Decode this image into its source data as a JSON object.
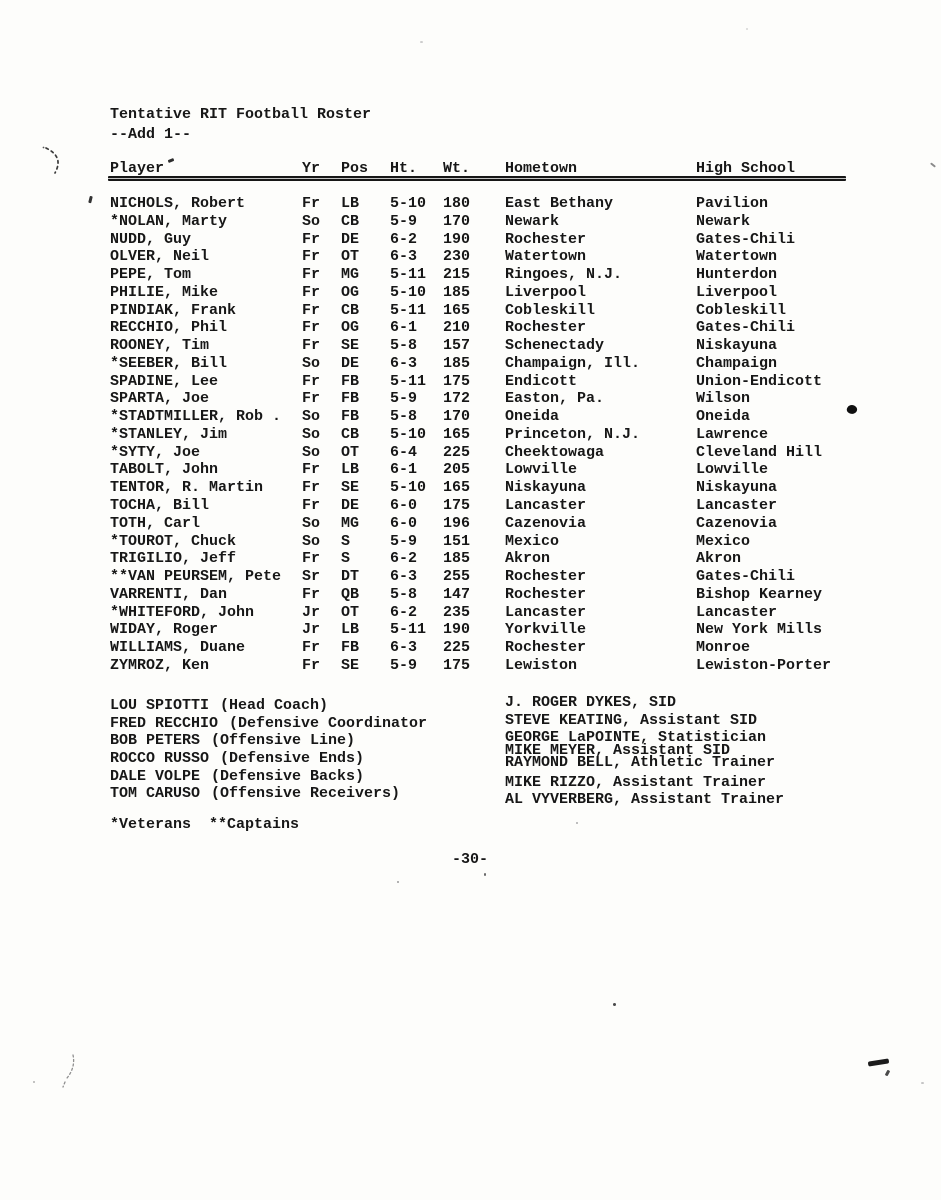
{
  "theme": {
    "paper": "#fdfdfb",
    "ink": "#171717"
  },
  "doc": {
    "title": "Tentative RIT Football Roster",
    "subtitle": "--Add 1--",
    "legend": "*Veterans  **Captains",
    "page_mark": "-30-"
  },
  "roster": {
    "columns": [
      "Player",
      "Yr",
      "Pos",
      "Ht.",
      "Wt.",
      "Hometown",
      "High School"
    ],
    "players": [
      {
        "name": "NICHOLS, Robert",
        "yr": "Fr",
        "pos": "LB",
        "ht": "5-10",
        "wt": "180",
        "hometown": "East Bethany",
        "high_school": "Pavilion"
      },
      {
        "name": "*NOLAN, Marty",
        "yr": "So",
        "pos": "CB",
        "ht": "5-9",
        "wt": "170",
        "hometown": "Newark",
        "high_school": "Newark"
      },
      {
        "name": "NUDD, Guy",
        "yr": "Fr",
        "pos": "DE",
        "ht": "6-2",
        "wt": "190",
        "hometown": "Rochester",
        "high_school": "Gates-Chili"
      },
      {
        "name": "OLVER, Neil",
        "yr": "Fr",
        "pos": "OT",
        "ht": "6-3",
        "wt": "230",
        "hometown": "Watertown",
        "high_school": "Watertown"
      },
      {
        "name": "PEPE, Tom",
        "yr": "Fr",
        "pos": "MG",
        "ht": "5-11",
        "wt": "215",
        "hometown": "Ringoes, N.J.",
        "high_school": "Hunterdon"
      },
      {
        "name": "PHILIE, Mike",
        "yr": "Fr",
        "pos": "OG",
        "ht": "5-10",
        "wt": "185",
        "hometown": "Liverpool",
        "high_school": "Liverpool"
      },
      {
        "name": "PINDIAK, Frank",
        "yr": "Fr",
        "pos": "CB",
        "ht": "5-11",
        "wt": "165",
        "hometown": "Cobleskill",
        "high_school": "Cobleskill"
      },
      {
        "name": "RECCHIO, Phil",
        "yr": "Fr",
        "pos": "OG",
        "ht": "6-1",
        "wt": "210",
        "hometown": "Rochester",
        "high_school": "Gates-Chili"
      },
      {
        "name": "ROONEY, Tim",
        "yr": "Fr",
        "pos": "SE",
        "ht": "5-8",
        "wt": "157",
        "hometown": "Schenectady",
        "high_school": "Niskayuna"
      },
      {
        "name": "*SEEBER, Bill",
        "yr": "So",
        "pos": "DE",
        "ht": "6-3",
        "wt": "185",
        "hometown": "Champaign, Ill.",
        "high_school": "Champaign"
      },
      {
        "name": "SPADINE, Lee",
        "yr": "Fr",
        "pos": "FB",
        "ht": "5-11",
        "wt": "175",
        "hometown": "Endicott",
        "high_school": "Union-Endicott"
      },
      {
        "name": "SPARTA, Joe",
        "yr": "Fr",
        "pos": "FB",
        "ht": "5-9",
        "wt": "172",
        "hometown": "Easton, Pa.",
        "high_school": "Wilson"
      },
      {
        "name": "*STADTMILLER, Rob .",
        "yr": "So",
        "pos": "FB",
        "ht": "5-8",
        "wt": "170",
        "hometown": "Oneida",
        "high_school": "Oneida"
      },
      {
        "name": "*STANLEY, Jim",
        "yr": "So",
        "pos": "CB",
        "ht": "5-10",
        "wt": "165",
        "hometown": "Princeton, N.J.",
        "high_school": "Lawrence"
      },
      {
        "name": "*SYTY, Joe",
        "yr": "So",
        "pos": "OT",
        "ht": "6-4",
        "wt": "225",
        "hometown": "Cheektowaga",
        "high_school": "Cleveland Hill"
      },
      {
        "name": "TABOLT, John",
        "yr": "Fr",
        "pos": "LB",
        "ht": "6-1",
        "wt": "205",
        "hometown": "Lowville",
        "high_school": "Lowville"
      },
      {
        "name": "TENTOR, R. Martin",
        "yr": "Fr",
        "pos": "SE",
        "ht": "5-10",
        "wt": "165",
        "hometown": "Niskayuna",
        "high_school": "Niskayuna"
      },
      {
        "name": "TOCHA, Bill",
        "yr": "Fr",
        "pos": "DE",
        "ht": "6-0",
        "wt": "175",
        "hometown": "Lancaster",
        "high_school": "Lancaster"
      },
      {
        "name": "TOTH, Carl",
        "yr": "So",
        "pos": "MG",
        "ht": "6-0",
        "wt": "196",
        "hometown": "Cazenovia",
        "high_school": "Cazenovia"
      },
      {
        "name": "*TOUROT, Chuck",
        "yr": "So",
        "pos": "S",
        "ht": "5-9",
        "wt": "151",
        "hometown": "Mexico",
        "high_school": "Mexico"
      },
      {
        "name": "TRIGILIO, Jeff",
        "yr": "Fr",
        "pos": "S",
        "ht": "6-2",
        "wt": "185",
        "hometown": "Akron",
        "high_school": "Akron"
      },
      {
        "name": "**VAN PEURSEM, Pete",
        "yr": "Sr",
        "pos": "DT",
        "ht": "6-3",
        "wt": "255",
        "hometown": "Rochester",
        "high_school": "Gates-Chili"
      },
      {
        "name": "VARRENTI, Dan",
        "yr": "Fr",
        "pos": "QB",
        "ht": "5-8",
        "wt": "147",
        "hometown": "Rochester",
        "high_school": "Bishop Kearney"
      },
      {
        "name": "*WHITEFORD, John",
        "yr": "Jr",
        "pos": "OT",
        "ht": "6-2",
        "wt": "235",
        "hometown": "Lancaster",
        "high_school": "Lancaster"
      },
      {
        "name": "WIDAY, Roger",
        "yr": "Jr",
        "pos": "LB",
        "ht": "5-11",
        "wt": "190",
        "hometown": "Yorkville",
        "high_school": "New York Mills"
      },
      {
        "name": "WILLIAMS, Duane",
        "yr": "Fr",
        "pos": "FB",
        "ht": "6-3",
        "wt": "225",
        "hometown": "Rochester",
        "high_school": "Monroe"
      },
      {
        "name": "ZYMROZ, Ken",
        "yr": "Fr",
        "pos": "SE",
        "ht": "5-9",
        "wt": "175",
        "hometown": "Lewiston",
        "high_school": "Lewiston-Porter"
      }
    ]
  },
  "coaches": [
    {
      "name": "LOU SPIOTTI",
      "role": "(Head Coach)"
    },
    {
      "name": "FRED RECCHIO",
      "role": "(Defensive Coordinator"
    },
    {
      "name": "BOB PETERS",
      "role": "(Offensive Line)"
    },
    {
      "name": "ROCCO RUSSO",
      "role": "(Defensive Ends)"
    },
    {
      "name": "DALE VOLPE",
      "role": "(Defensive Backs)"
    },
    {
      "name": "TOM CARUSO",
      "role": "(Offensive Receivers)"
    }
  ],
  "staff": [
    {
      "text": "J. ROGER DYKES, SID"
    },
    {
      "text": "STEVE KEATING, Assistant SID"
    },
    {
      "text": "GEORGE LaPOINTE, Statistician"
    },
    {
      "text": "MIKE MEYER, Assistant SID"
    },
    {
      "text": "RAYMOND BELL, Athletic Trainer"
    },
    {
      "text": "MIKE RIZZO, Assistant Trainer"
    },
    {
      "text": "AL VYVERBERG, Assistant Trainer"
    }
  ]
}
